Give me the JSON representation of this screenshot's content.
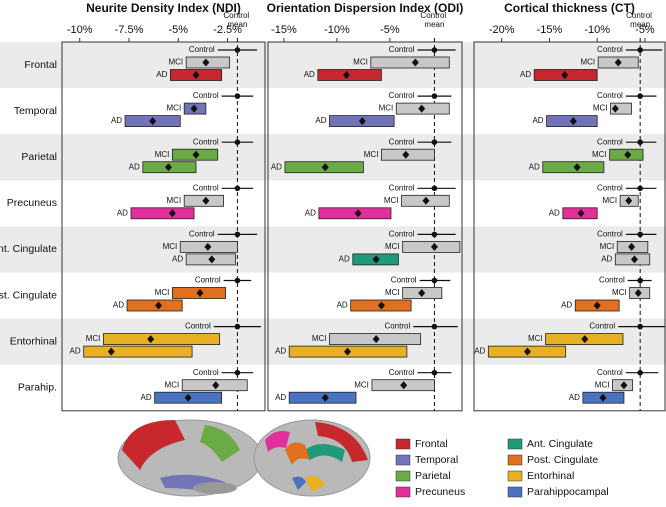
{
  "chart_data": [
    {
      "type": "range",
      "title": "Neurite Density Index (NDI)",
      "xlim": [
        -10.9,
        -0.6
      ],
      "xticks": [
        {
          "value": -10,
          "label": "-10%"
        },
        {
          "value": -7.5,
          "label": "-7.5%"
        },
        {
          "value": -5,
          "label": "-5%"
        },
        {
          "value": -2.5,
          "label": "-2.5%"
        }
      ],
      "reference": {
        "value": -2.0,
        "label": "Control mean"
      },
      "categories": [
        "Frontal",
        "Temporal",
        "Parietal",
        "Precuneus",
        "Ant. Cingulate",
        "Post. Cingulate",
        "Entorhinal",
        "Parahip."
      ],
      "series": [
        {
          "name": "Control",
          "color": "#111111",
          "values": [
            -2.0,
            -2.0,
            -2.0,
            -2.0,
            -2.0,
            -2.0,
            -2.0,
            -2.0
          ],
          "low": [
            -3.0,
            -2.8,
            -2.8,
            -2.8,
            -3.0,
            -2.7,
            -3.2,
            -2.8
          ],
          "high": [
            -1.0,
            -1.2,
            -1.2,
            -1.2,
            -1.0,
            -1.3,
            -0.8,
            -1.2
          ]
        },
        {
          "name": "MCI",
          "values": [
            -3.6,
            -4.2,
            -4.1,
            -3.6,
            -3.5,
            -3.9,
            -6.4,
            -3.1
          ],
          "low": [
            -4.6,
            -4.7,
            -5.3,
            -4.7,
            -4.9,
            -5.3,
            -8.8,
            -4.8
          ],
          "high": [
            -2.4,
            -3.6,
            -3.0,
            -2.7,
            -2.0,
            -2.6,
            -2.9,
            -1.5
          ],
          "colors": [
            "#c8c8c8",
            "#7373b8",
            "#6aab46",
            "#c8c8c8",
            "#c8c8c8",
            "#e0701f",
            "#e8b023",
            "#c8c8c8"
          ]
        },
        {
          "name": "AD",
          "values": [
            -4.1,
            -6.3,
            -5.5,
            -5.3,
            -3.3,
            -6.0,
            -8.4,
            -4.5
          ],
          "low": [
            -5.4,
            -7.7,
            -6.8,
            -7.4,
            -4.6,
            -7.6,
            -9.8,
            -6.2
          ],
          "high": [
            -2.8,
            -4.9,
            -4.1,
            -4.2,
            -2.1,
            -4.8,
            -4.3,
            -2.8
          ],
          "colors": [
            "#c7282d",
            "#7373b8",
            "#6aab46",
            "#e2309a",
            "#c8c8c8",
            "#e0701f",
            "#e8b023",
            "#4a72c0"
          ]
        }
      ]
    },
    {
      "type": "range",
      "title": "Orientation Dispersion Index (ODI)",
      "xlim": [
        -16.5,
        1.8
      ],
      "xticks": [
        {
          "value": -15,
          "label": "-15%"
        },
        {
          "value": -10,
          "label": "-10%"
        },
        {
          "value": -5,
          "label": "-5%"
        }
      ],
      "reference": {
        "value": -0.8,
        "label": "Control mean"
      },
      "categories": [
        "Frontal",
        "Temporal",
        "Parietal",
        "Precuneus",
        "Ant. Cingulate",
        "Post. Cingulate",
        "Entorhinal",
        "Parahip."
      ],
      "series": [
        {
          "name": "Control",
          "color": "#111111",
          "values": [
            -0.8,
            -0.8,
            -0.8,
            -0.8,
            -0.8,
            -0.8,
            -0.8,
            -0.8
          ],
          "low": [
            -2.4,
            -2.4,
            -2.4,
            -2.4,
            -2.4,
            -2.2,
            -2.8,
            -2.4
          ],
          "high": [
            1.2,
            0.8,
            0.8,
            1.2,
            1.2,
            0.7,
            1.4,
            0.8
          ]
        },
        {
          "name": "MCI",
          "values": [
            -2.6,
            -2.0,
            -3.5,
            -1.6,
            -0.8,
            -2.0,
            -6.3,
            -3.7
          ],
          "low": [
            -6.8,
            -4.4,
            -5.8,
            -3.9,
            -3.8,
            -3.8,
            -10.7,
            -6.7
          ],
          "high": [
            0.6,
            0.6,
            -0.8,
            0.6,
            1.6,
            -0.1,
            -2.1,
            -0.8
          ],
          "colors": [
            "#c8c8c8",
            "#c8c8c8",
            "#c8c8c8",
            "#c8c8c8",
            "#c8c8c8",
            "#c8c8c8",
            "#c8c8c8",
            "#c8c8c8"
          ]
        },
        {
          "name": "AD",
          "values": [
            -9.1,
            -7.6,
            -11.1,
            -8.0,
            -6.3,
            -5.8,
            -9.0,
            -11.1
          ],
          "low": [
            -11.8,
            -10.7,
            -14.9,
            -11.7,
            -8.5,
            -8.7,
            -14.5,
            -14.5
          ],
          "high": [
            -5.8,
            -4.6,
            -7.5,
            -4.9,
            -4.2,
            -3.0,
            -3.4,
            -8.2
          ],
          "colors": [
            "#c7282d",
            "#7373b8",
            "#6aab46",
            "#e2309a",
            "#1f9a7a",
            "#e0701f",
            "#e8b023",
            "#4a72c0"
          ]
        }
      ]
    },
    {
      "type": "range",
      "title": "Cortical thickness (CT)",
      "xlim": [
        -22.9,
        -2.9
      ],
      "xticks": [
        {
          "value": -20,
          "label": "-20%"
        },
        {
          "value": -15,
          "label": "-15%"
        },
        {
          "value": -10,
          "label": "-10%"
        },
        {
          "value": -5,
          "label": "-5%"
        }
      ],
      "reference": {
        "value": -5.5,
        "label": "Control mean"
      },
      "categories": [
        "Frontal",
        "Temporal",
        "Parietal",
        "Precuneus",
        "Ant. Cingulate",
        "Post. Cingulate",
        "Entorhinal",
        "Parahip."
      ],
      "series": [
        {
          "name": "Control",
          "color": "#111111",
          "values": [
            -5.5,
            -5.5,
            -5.5,
            -5.5,
            -5.5,
            -5.5,
            -5.5,
            -5.5
          ],
          "low": [
            -7.0,
            -7.0,
            -7.0,
            -7.0,
            -7.0,
            -6.8,
            -7.8,
            -7.0
          ],
          "high": [
            -3.2,
            -3.8,
            -3.8,
            -3.8,
            -3.8,
            -4.3,
            -2.9,
            -3.6
          ]
        },
        {
          "name": "MCI",
          "values": [
            -7.8,
            -8.1,
            -6.8,
            -6.7,
            -6.4,
            -5.7,
            -11.3,
            -7.2
          ],
          "low": [
            -9.9,
            -8.6,
            -8.7,
            -7.6,
            -7.9,
            -6.6,
            -15.4,
            -8.4
          ],
          "high": [
            -5.7,
            -6.4,
            -5.2,
            -5.7,
            -4.7,
            -4.5,
            -7.3,
            -6.3
          ],
          "colors": [
            "#c8c8c8",
            "#c8c8c8",
            "#6aab46",
            "#c8c8c8",
            "#c8c8c8",
            "#c8c8c8",
            "#e8b023",
            "#c8c8c8"
          ]
        },
        {
          "name": "AD",
          "values": [
            -13.4,
            -12.5,
            -12.1,
            -11.7,
            -6.1,
            -10.0,
            -17.3,
            -9.4
          ],
          "low": [
            -16.6,
            -15.3,
            -15.7,
            -13.6,
            -8.1,
            -12.3,
            -21.4,
            -11.5
          ],
          "high": [
            -10.0,
            -10.0,
            -9.3,
            -10.0,
            -4.5,
            -7.7,
            -13.3,
            -7.2
          ],
          "colors": [
            "#c7282d",
            "#7373b8",
            "#6aab46",
            "#e2309a",
            "#c8c8c8",
            "#e0701f",
            "#e8b023",
            "#4a72c0"
          ]
        }
      ]
    }
  ],
  "legend": [
    {
      "name": "Frontal",
      "color": "#c7282d"
    },
    {
      "name": "Temporal",
      "color": "#7373b8"
    },
    {
      "name": "Parietal",
      "color": "#6aab46"
    },
    {
      "name": "Precuneus",
      "color": "#e2309a"
    },
    {
      "name": "Ant. Cingulate",
      "color": "#1f9a7a"
    },
    {
      "name": "Post. Cingulate",
      "color": "#e0701f"
    },
    {
      "name": "Entorhinal",
      "color": "#e8b023"
    },
    {
      "name": "Parahippocampal",
      "color": "#4a72c0"
    }
  ]
}
